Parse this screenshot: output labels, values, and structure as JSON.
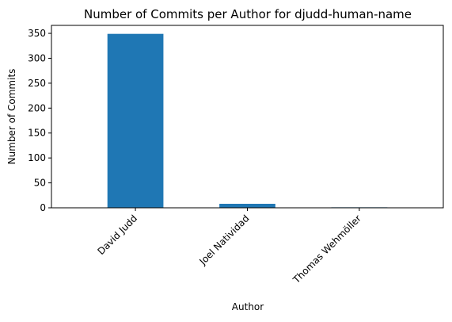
{
  "chart_data": {
    "type": "bar",
    "title": "Number of Commits per Author for djudd-human-name",
    "xlabel": "Author",
    "ylabel": "Number of Commits",
    "categories": [
      "David Judd",
      "Joel Natividad",
      "Thomas Wehmöller"
    ],
    "values": [
      349,
      8,
      1
    ],
    "ylim": [
      0,
      366
    ],
    "yticks": [
      0,
      50,
      100,
      150,
      200,
      250,
      300,
      350
    ],
    "bar_color": "#1f77b4",
    "grid": false,
    "legend": "none"
  }
}
